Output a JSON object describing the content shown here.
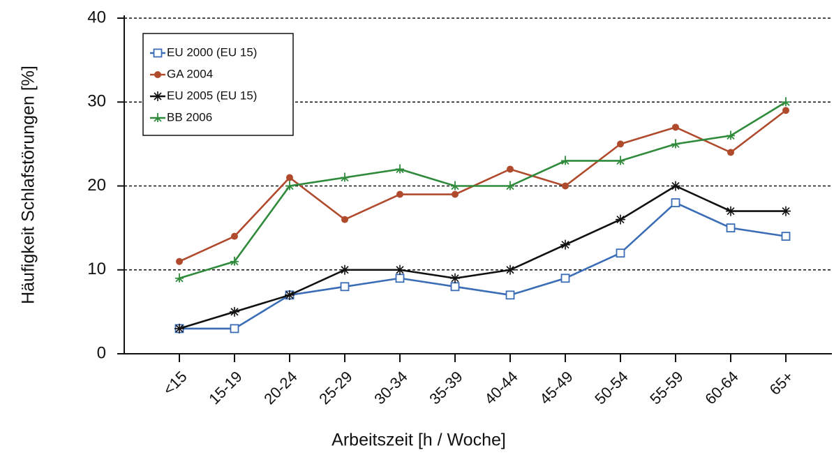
{
  "chart_data": {
    "type": "line",
    "xlabel": "Arbeitszeit [h / Woche]",
    "ylabel": "Häufigkeit Schlafstörungen [%]",
    "categories": [
      "<15",
      "15-19",
      "20-24",
      "25-29",
      "30-34",
      "35-39",
      "40-44",
      "45-49",
      "50-54",
      "55-59",
      "60-64",
      "65+"
    ],
    "series": [
      {
        "name": "EU 2000 (EU 15)",
        "color": "#3a6db5",
        "marker": "square",
        "values": [
          3,
          3,
          7,
          8,
          9,
          8,
          7,
          9,
          12,
          18,
          15,
          14
        ]
      },
      {
        "name": "GA 2004",
        "color": "#b04a2c",
        "marker": "circle",
        "values": [
          11,
          14,
          21,
          16,
          19,
          19,
          22,
          20,
          25,
          27,
          24,
          29
        ]
      },
      {
        "name": "EU 2005 (EU 15)",
        "color": "#111111",
        "marker": "star",
        "values": [
          3,
          5,
          7,
          10,
          10,
          9,
          10,
          13,
          16,
          20,
          17,
          17
        ]
      },
      {
        "name": "BB 2006",
        "color": "#2f8a3b",
        "marker": "tri",
        "values": [
          9,
          11,
          20,
          21,
          22,
          20,
          20,
          23,
          23,
          25,
          26,
          30
        ]
      }
    ],
    "ylim": [
      0,
      40
    ],
    "yticks": [
      0,
      10,
      20,
      30,
      40
    ],
    "grid": true,
    "legend": "upper left"
  }
}
